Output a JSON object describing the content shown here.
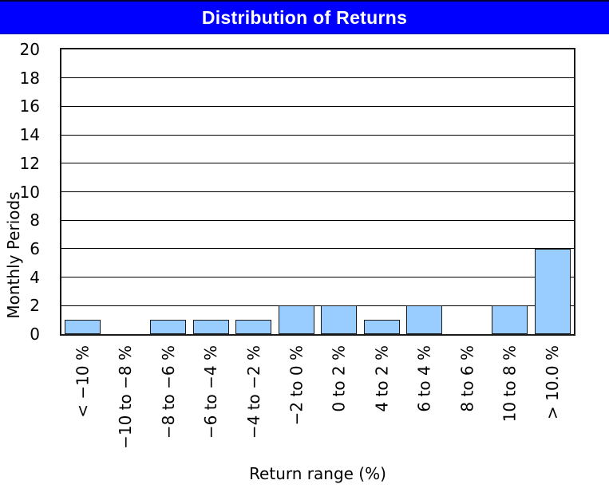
{
  "window": {
    "title": "Distribution of Returns"
  },
  "colors": {
    "title_bg": "#0000ff",
    "title_fg": "#ffffff",
    "bar_fill": "#99ccff",
    "bar_border": "#1a1a1a",
    "grid": "#000000",
    "plot_border": "#1a1a1a",
    "text": "#000000"
  },
  "chart_data": {
    "type": "bar",
    "title": "Distribution of Returns",
    "xlabel": "Return range (%)",
    "ylabel": "Monthly Periods",
    "categories": [
      "< −10 %",
      "−10 to −8 %",
      "−8 to −6 %",
      "−6 to −4 %",
      "−4 to −2 %",
      "−2 to 0 %",
      "0 to 2 %",
      "4 to 2 %",
      "6 to 4 %",
      "8 to 6 %",
      "10 to 8 %",
      "> 10.0 %"
    ],
    "values": [
      1,
      0,
      1,
      1,
      1,
      2,
      2,
      1,
      2,
      0,
      2,
      6
    ],
    "ylim": [
      0,
      20
    ],
    "yticks": [
      0,
      2,
      4,
      6,
      8,
      10,
      12,
      14,
      16,
      18,
      20
    ],
    "grid": "horizontal",
    "legend": "none",
    "x_tick_label_rotation_deg": 90
  }
}
